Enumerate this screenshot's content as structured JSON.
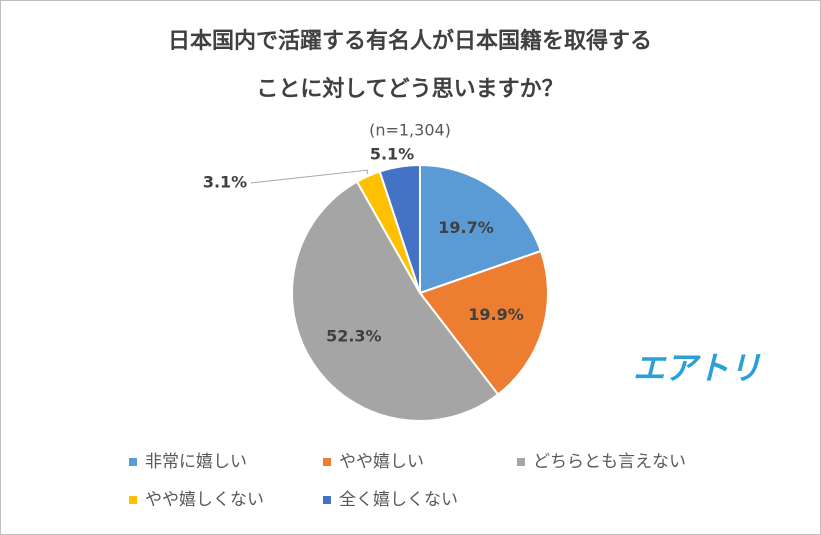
{
  "chart_data": {
    "type": "pie",
    "title": [
      "日本国内で活躍する有名人が日本国籍を取得する",
      "ことに対してどう思いますか？"
    ],
    "subtitle": "(n=1,304)",
    "categories": [
      "非常に嬉しい",
      "やや嬉しい",
      "どちらとも言えない",
      "やや嬉しくない",
      "全く嬉しくない"
    ],
    "values": [
      19.7,
      19.9,
      52.3,
      3.1,
      5.1
    ],
    "value_labels": [
      "19.7%",
      "19.9%",
      "52.3%",
      "3.1%",
      "5.1%"
    ],
    "colors": [
      "#5b9bd5",
      "#ed7d31",
      "#a5a5a5",
      "#ffc000",
      "#4472c4"
    ],
    "logo": "エアトリ"
  }
}
